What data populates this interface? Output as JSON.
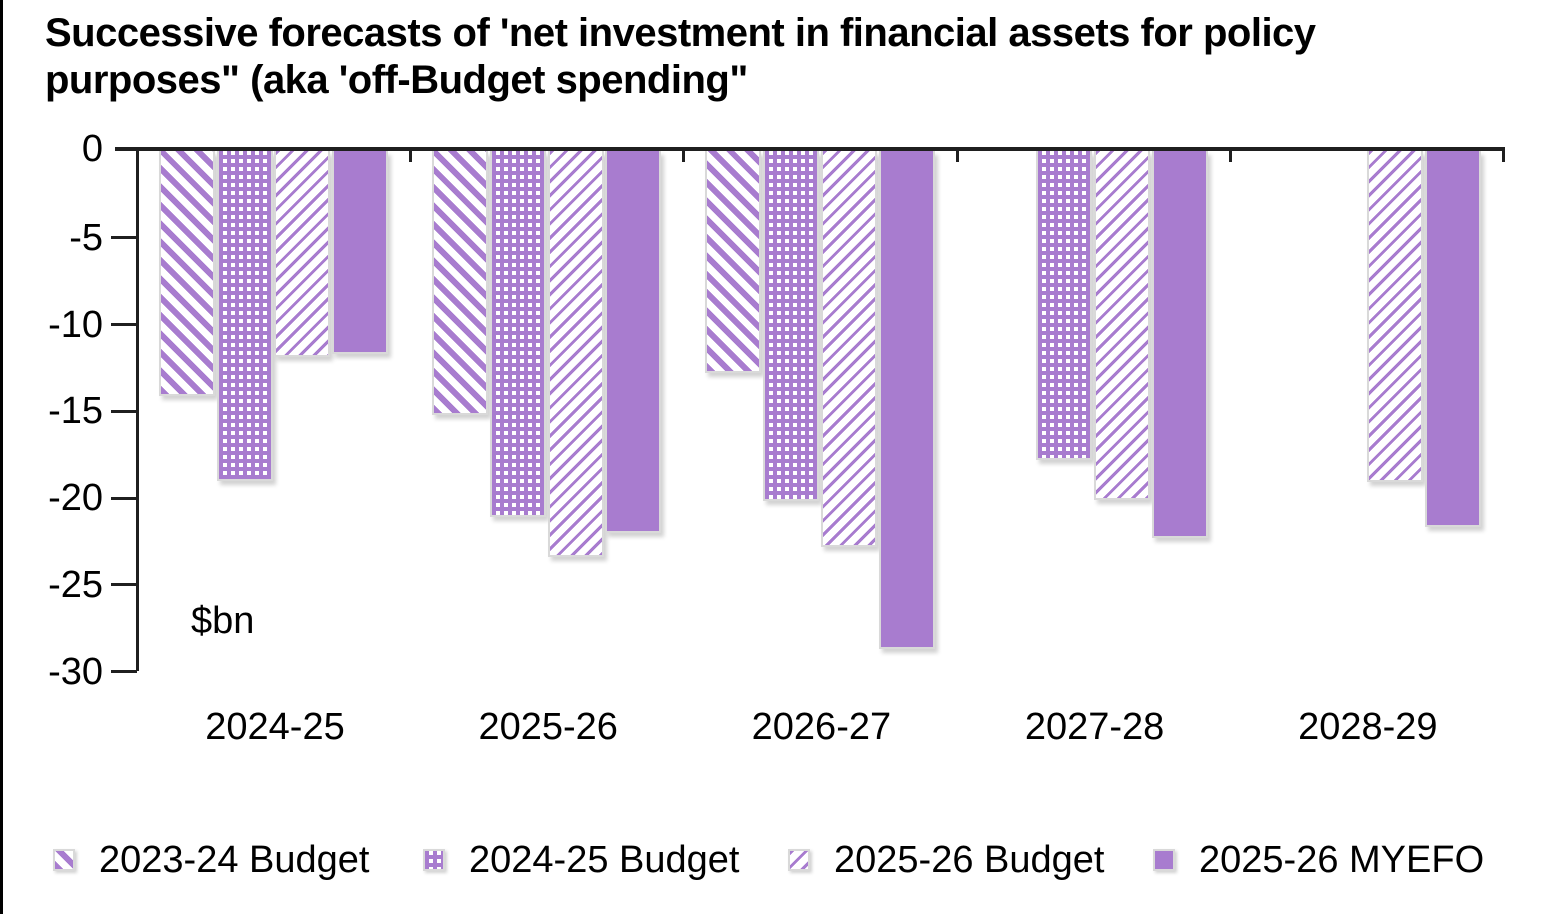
{
  "chart_data": {
    "type": "bar",
    "title": "Successive forecasts of 'net investment in financial assets for policy\npurposes\" (aka 'off-Budget spending\"",
    "unit_label": "$bn",
    "xlabel": "",
    "ylabel": "$bn",
    "categories": [
      "2024-25",
      "2025-26",
      "2026-27",
      "2027-28",
      "2028-29"
    ],
    "series": [
      {
        "name": "2023-24 Budget",
        "pattern": "diagonal-down-hatch",
        "values": [
          -14.1,
          -15.2,
          -12.8,
          null,
          null
        ]
      },
      {
        "name": "2024-25 Budget",
        "pattern": "dotted-grid",
        "values": [
          -19.0,
          -21.1,
          -20.2,
          -17.8,
          null
        ]
      },
      {
        "name": "2025-26 Budget",
        "pattern": "diagonal-up-hatch",
        "values": [
          -11.9,
          -23.4,
          -22.8,
          -20.1,
          -19.1
        ]
      },
      {
        "name": "2025-26 MYEFO",
        "pattern": "solid",
        "values": [
          -11.7,
          -22.0,
          -28.7,
          -22.3,
          -21.7
        ]
      }
    ],
    "y_ticks": [
      0,
      -5,
      -10,
      -15,
      -20,
      -25,
      -30
    ],
    "ylim": [
      0,
      -30
    ],
    "grid": false,
    "legend_position": "bottom",
    "colors": {
      "bar_fill": "#a87ccf",
      "pattern_background": "#ffffff",
      "bar_border": "#d9d9d9",
      "axis": "#1f1f1f",
      "text": "#000000"
    }
  }
}
